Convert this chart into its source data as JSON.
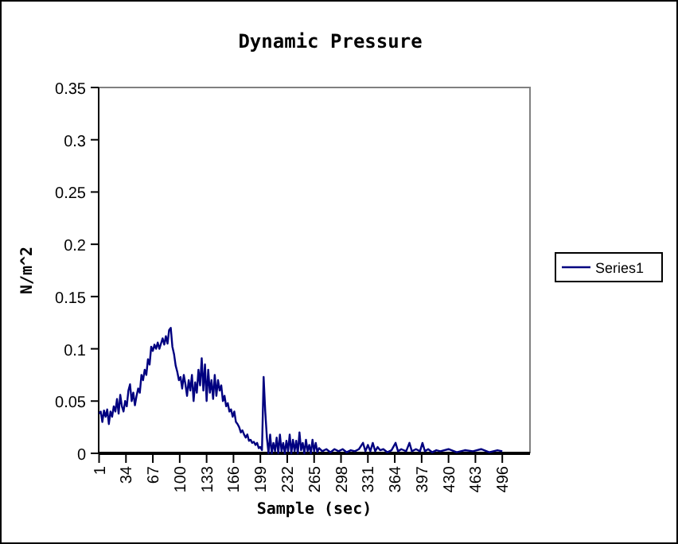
{
  "chart_data": {
    "type": "line",
    "title": "Dynamic Pressure",
    "xlabel": "Sample (sec)",
    "ylabel": "N/m^2",
    "xlim": [
      0.5,
      530
    ],
    "xticks": [
      1,
      34,
      67,
      100,
      133,
      166,
      199,
      232,
      265,
      298,
      331,
      364,
      397,
      430,
      463,
      496
    ],
    "ylim": [
      0,
      0.35
    ],
    "yticks": [
      0,
      0.05,
      0.1,
      0.15,
      0.2,
      0.25,
      0.3,
      0.35
    ],
    "grid": false,
    "legend": "right",
    "series": [
      {
        "name": "Series1",
        "color": "#000080",
        "x": [
          1,
          3,
          5,
          7,
          9,
          11,
          13,
          15,
          17,
          19,
          21,
          23,
          25,
          27,
          29,
          31,
          33,
          35,
          37,
          39,
          41,
          43,
          45,
          47,
          49,
          51,
          53,
          55,
          57,
          59,
          61,
          63,
          65,
          67,
          69,
          71,
          73,
          75,
          77,
          79,
          81,
          83,
          85,
          87,
          89,
          91,
          93,
          95,
          97,
          99,
          101,
          103,
          105,
          107,
          109,
          111,
          113,
          115,
          117,
          119,
          121,
          123,
          125,
          127,
          129,
          131,
          133,
          135,
          137,
          139,
          141,
          143,
          145,
          147,
          149,
          151,
          153,
          155,
          157,
          159,
          161,
          163,
          165,
          167,
          169,
          171,
          173,
          175,
          177,
          179,
          181,
          183,
          185,
          187,
          189,
          191,
          193,
          195,
          197,
          199,
          201,
          203,
          205,
          207,
          209,
          211,
          213,
          215,
          217,
          219,
          221,
          223,
          225,
          227,
          229,
          231,
          233,
          235,
          237,
          239,
          241,
          243,
          245,
          247,
          249,
          251,
          253,
          255,
          257,
          259,
          261,
          263,
          265,
          267,
          269,
          271,
          275,
          280,
          285,
          290,
          295,
          300,
          305,
          310,
          315,
          320,
          325,
          328,
          331,
          334,
          337,
          340,
          343,
          346,
          350,
          355,
          360,
          365,
          368,
          372,
          378,
          382,
          385,
          390,
          395,
          398,
          401,
          405,
          410,
          415,
          420,
          430,
          440,
          450,
          460,
          470,
          480,
          490,
          496
        ],
        "values": [
          0.038,
          0.04,
          0.03,
          0.041,
          0.035,
          0.042,
          0.028,
          0.04,
          0.035,
          0.045,
          0.04,
          0.052,
          0.038,
          0.056,
          0.045,
          0.04,
          0.05,
          0.045,
          0.06,
          0.066,
          0.05,
          0.058,
          0.046,
          0.055,
          0.062,
          0.058,
          0.075,
          0.07,
          0.08,
          0.075,
          0.09,
          0.085,
          0.102,
          0.098,
          0.104,
          0.1,
          0.106,
          0.1,
          0.105,
          0.11,
          0.104,
          0.112,
          0.105,
          0.118,
          0.12,
          0.102,
          0.095,
          0.084,
          0.078,
          0.07,
          0.073,
          0.062,
          0.075,
          0.066,
          0.055,
          0.07,
          0.06,
          0.075,
          0.05,
          0.068,
          0.058,
          0.08,
          0.065,
          0.091,
          0.06,
          0.085,
          0.05,
          0.08,
          0.058,
          0.07,
          0.052,
          0.075,
          0.055,
          0.07,
          0.06,
          0.065,
          0.05,
          0.055,
          0.045,
          0.048,
          0.04,
          0.042,
          0.035,
          0.04,
          0.03,
          0.028,
          0.025,
          0.02,
          0.022,
          0.018,
          0.015,
          0.018,
          0.012,
          0.013,
          0.01,
          0.011,
          0.008,
          0.01,
          0.005,
          0.006,
          0.003,
          0.073,
          0.04,
          0.015,
          0,
          0.018,
          0,
          0.01,
          0.002,
          0.015,
          0,
          0.018,
          0.002,
          0.01,
          0,
          0.012,
          0.002,
          0.018,
          0,
          0.013,
          0.002,
          0.012,
          0,
          0.02,
          0.003,
          0.01,
          0,
          0.013,
          0.002,
          0.008,
          0,
          0.013,
          0.002,
          0.01,
          0.001,
          0.005,
          0.002,
          0.004,
          0.001,
          0.004,
          0.002,
          0.004,
          0.001,
          0.003,
          0.002,
          0.004,
          0.01,
          0.002,
          0.008,
          0.002,
          0.01,
          0.002,
          0.006,
          0.003,
          0.004,
          0.001,
          0.003,
          0.01,
          0.002,
          0.004,
          0.002,
          0.01,
          0.002,
          0.004,
          0.002,
          0.01,
          0.002,
          0.004,
          0.001,
          0.003,
          0.002,
          0.004,
          0.001,
          0.003,
          0.002,
          0.004,
          0.001,
          0.003,
          0.002
        ]
      }
    ]
  }
}
